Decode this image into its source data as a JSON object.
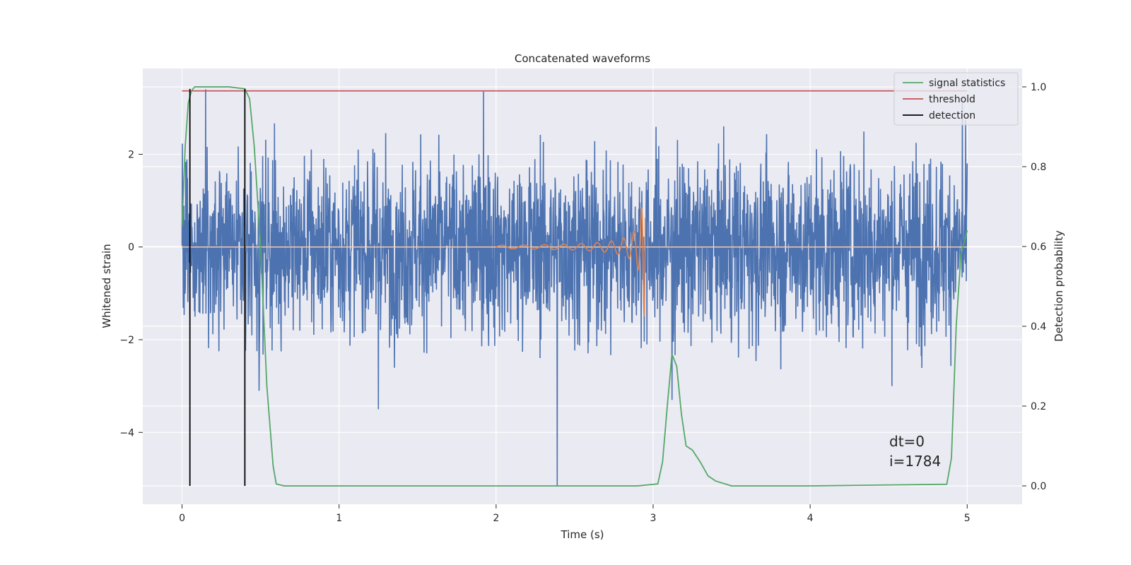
{
  "chart_data": {
    "type": "line",
    "title": "Concatenated waveforms",
    "xlabel": "Time (s)",
    "ylabel_left": "Whitened strain",
    "ylabel_right": "Detection probability",
    "xlim": [
      -0.25,
      5.35
    ],
    "ylim_left": [
      -5.55,
      3.85
    ],
    "ylim_right": [
      -0.046,
      1.046
    ],
    "x_ticks": [
      0,
      1,
      2,
      3,
      4,
      5
    ],
    "y_ticks_left": [
      -4,
      -2,
      0,
      2
    ],
    "y_ticks_right": [
      0.0,
      0.2,
      0.4,
      0.6,
      0.8,
      1.0
    ],
    "grid": true,
    "legend_position": "top-right",
    "series": [
      {
        "name": "whitened strain",
        "axis": "left",
        "color": "#4c72b0",
        "kind": "noise",
        "x_range": [
          0,
          5
        ],
        "approx_amplitude": 1.2,
        "notable_spikes": [
          {
            "x": 0.15,
            "y": 3.4
          },
          {
            "x": 0.49,
            "y": -3.1
          },
          {
            "x": 1.25,
            "y": -3.5
          },
          {
            "x": 1.92,
            "y": 3.35
          },
          {
            "x": 2.39,
            "y": -5.15
          },
          {
            "x": 3.12,
            "y": -3.3
          },
          {
            "x": 4.97,
            "y": 3.1
          }
        ]
      },
      {
        "name": "injected chirp",
        "axis": "left",
        "color": "#dd8452",
        "kind": "chirp",
        "t_start": 2.0,
        "t_merger": 2.95,
        "peak_amplitude": 1.5
      },
      {
        "name": "signal statistics",
        "axis": "right",
        "color": "#55a868",
        "x": [
          0,
          0.02,
          0.04,
          0.06,
          0.08,
          0.1,
          0.3,
          0.4,
          0.43,
          0.46,
          0.5,
          0.54,
          0.58,
          0.6,
          0.65,
          1,
          2,
          2.9,
          3.03,
          3.06,
          3.09,
          3.12,
          3.15,
          3.18,
          3.21,
          3.25,
          3.3,
          3.35,
          3.4,
          3.5,
          4,
          4.87,
          4.9,
          4.93,
          4.96,
          5
        ],
        "y": [
          0.65,
          0.85,
          0.96,
          0.99,
          1.0,
          1.0,
          1.0,
          0.995,
          0.97,
          0.85,
          0.6,
          0.25,
          0.05,
          0.005,
          0.0,
          0.0,
          0.0,
          0.0,
          0.005,
          0.06,
          0.2,
          0.33,
          0.3,
          0.18,
          0.1,
          0.09,
          0.06,
          0.025,
          0.012,
          0.0,
          0.0,
          0.004,
          0.07,
          0.4,
          0.58,
          0.64
        ]
      },
      {
        "name": "threshold",
        "axis": "right",
        "color": "#c44e52",
        "x": [
          0,
          5
        ],
        "y": [
          0.99,
          0.99
        ]
      },
      {
        "name": "detection",
        "axis": "right",
        "color": "#000000",
        "kind": "vertical_lines",
        "x": [
          0.05,
          0.4
        ],
        "y_range": [
          0.0,
          0.995
        ]
      }
    ],
    "legend": [
      {
        "label": "signal statistics",
        "color": "#55a868"
      },
      {
        "label": "threshold",
        "color": "#c44e52"
      },
      {
        "label": "detection",
        "color": "#000000"
      }
    ],
    "annotations": [
      "dt=0",
      "i=1784"
    ]
  },
  "colors": {
    "axes_background": "#eaeaf2",
    "grid": "#ffffff",
    "text": "#262626"
  }
}
